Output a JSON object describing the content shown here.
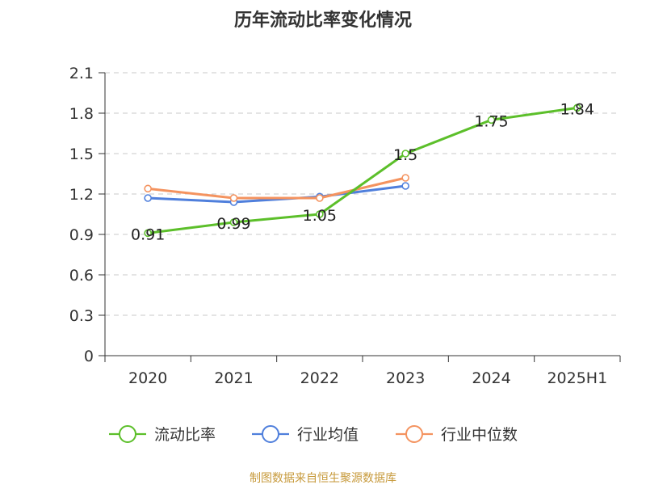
{
  "chart_data": {
    "type": "line",
    "title": "历年流动比率变化情况",
    "categories": [
      "2020",
      "2021",
      "2022",
      "2023",
      "2024",
      "2025H1"
    ],
    "y_ticks": [
      "0",
      "0.3",
      "0.6",
      "0.9",
      "1.2",
      "1.5",
      "1.8",
      "2.1"
    ],
    "ylim": [
      0,
      2.1
    ],
    "grid": true,
    "legend_position": "bottom",
    "series": [
      {
        "name": "流动比率",
        "color": "#5cbf2a",
        "values": [
          0.91,
          0.99,
          1.05,
          1.5,
          1.75,
          1.84
        ],
        "labels": [
          "0.91",
          "0.99",
          "1.05",
          "1.5",
          "1.75",
          "1.84"
        ]
      },
      {
        "name": "行业均值",
        "color": "#4f7fdc",
        "values": [
          1.17,
          1.14,
          1.18,
          1.26,
          null,
          null
        ]
      },
      {
        "name": "行业中位数",
        "color": "#f4935f",
        "values": [
          1.24,
          1.17,
          1.17,
          1.32,
          null,
          null
        ]
      }
    ],
    "source": "制图数据来自恒生聚源数据库"
  }
}
